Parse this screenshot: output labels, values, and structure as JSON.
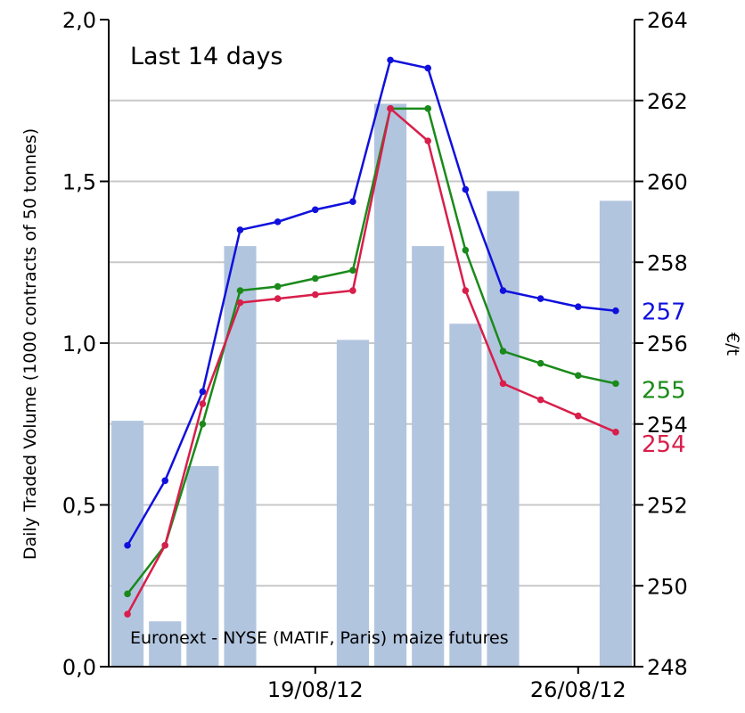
{
  "chart_data": {
    "type": "bar+line",
    "annotation_top": "Last 14 days",
    "annotation_bottom": "Euronext - NYSE (MATIF, Paris) maize futures",
    "ylabel_left": "Daily Traded Volume (1000 contracts of 50 tonnes)",
    "ylabel_right": "€/t",
    "y_left_range": [
      0,
      2
    ],
    "y_left_ticks": [
      "0,0",
      "0,5",
      "1,0",
      "1,5",
      "2,0"
    ],
    "y_right_range": [
      248,
      264
    ],
    "y_right_ticks": [
      "248",
      "250",
      "252",
      "254",
      "256",
      "258",
      "260",
      "262",
      "264"
    ],
    "x_tick_labels": [
      "19/08/12",
      "26/08/12"
    ],
    "x_tick_index": [
      5.5,
      12.5
    ],
    "grid": true,
    "bars": {
      "name": "Daily Traded Volume",
      "color": "#b2c5df",
      "values": [
        0.76,
        0.14,
        0.62,
        1.3,
        null,
        null,
        1.01,
        1.74,
        1.3,
        1.06,
        1.47,
        null,
        null,
        1.44
      ]
    },
    "series": [
      {
        "color": "#1010dd",
        "end_label": "257",
        "values": [
          251.0,
          252.6,
          254.8,
          258.8,
          259.0,
          259.3,
          259.5,
          263.0,
          262.8,
          259.8,
          257.3,
          257.1,
          256.9,
          256.8
        ]
      },
      {
        "color": "#1a8a1a",
        "end_label": "255",
        "values": [
          249.8,
          251.0,
          254.0,
          257.3,
          257.4,
          257.6,
          257.8,
          261.8,
          261.8,
          258.3,
          255.8,
          255.5,
          255.2,
          255.0
        ]
      },
      {
        "color": "#d81e4a",
        "end_label": "254",
        "values": [
          249.3,
          251.0,
          254.5,
          257.0,
          257.1,
          257.2,
          257.3,
          261.8,
          261.0,
          257.3,
          255.0,
          254.6,
          254.2,
          253.8
        ]
      }
    ]
  }
}
